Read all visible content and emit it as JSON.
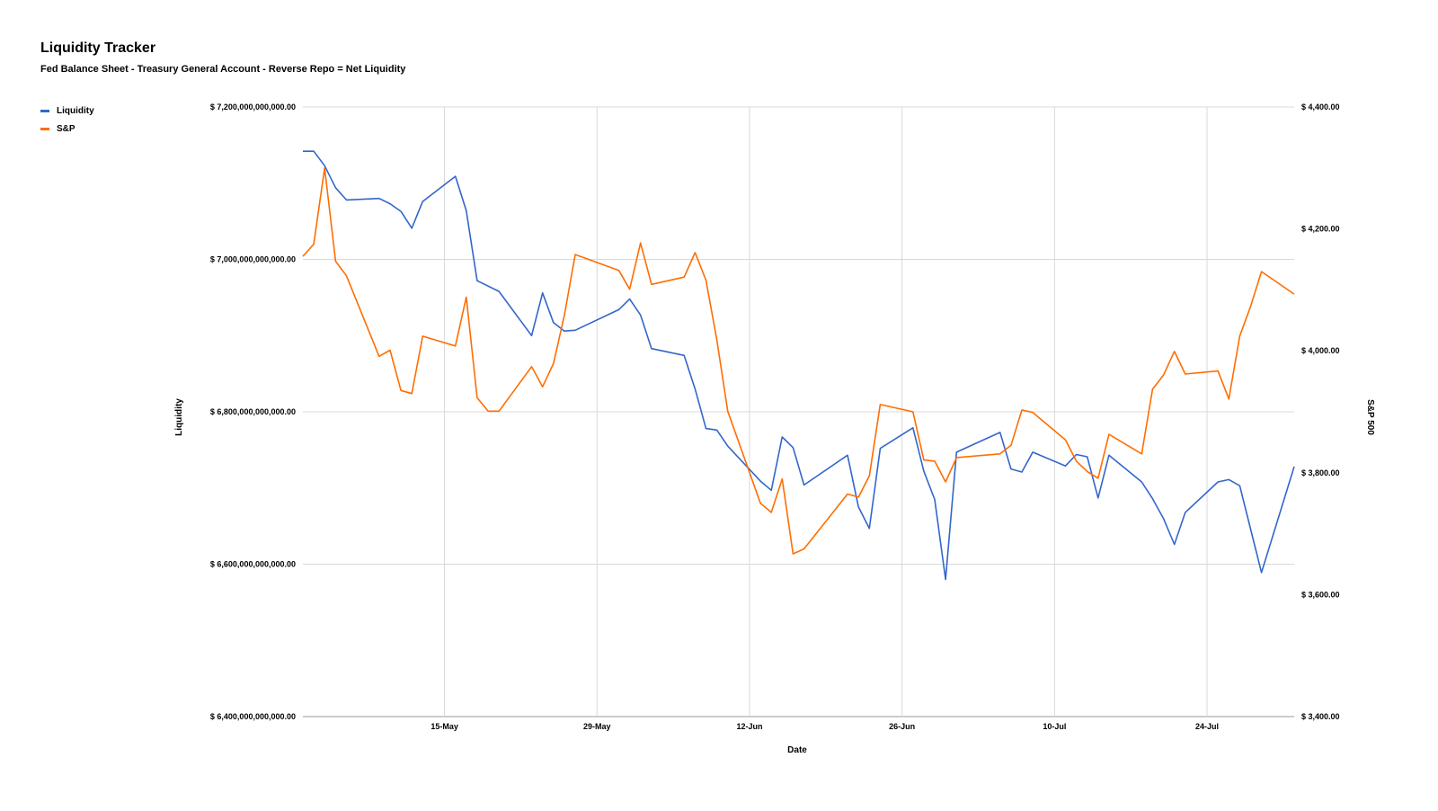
{
  "chart_data": {
    "type": "line",
    "title": "Liquidity Tracker",
    "subtitle": "Fed Balance Sheet - Treasury General Account - Reverse Repo = Net Liquidity",
    "xlabel": "Date",
    "ylabel_left": "Liquidity",
    "ylabel_right": "S&P 500",
    "x_start": "2022-05-02",
    "x_end": "2022-08-01",
    "x_ticks": [
      {
        "date": "2022-05-15",
        "label": "15-May"
      },
      {
        "date": "2022-05-29",
        "label": "29-May"
      },
      {
        "date": "2022-06-12",
        "label": "12-Jun"
      },
      {
        "date": "2022-06-26",
        "label": "26-Jun"
      },
      {
        "date": "2022-07-10",
        "label": "10-Jul"
      },
      {
        "date": "2022-07-24",
        "label": "24-Jul"
      }
    ],
    "ylim_left": [
      6400000000000,
      7200000000000
    ],
    "ylim_right": [
      3400,
      4400
    ],
    "y_ticks_left": [
      {
        "value": 7200000000000,
        "label": "$ 7,200,000,000,000.00"
      },
      {
        "value": 7000000000000,
        "label": "$ 7,000,000,000,000.00"
      },
      {
        "value": 6800000000000,
        "label": "$ 6,800,000,000,000.00"
      },
      {
        "value": 6600000000000,
        "label": "$ 6,600,000,000,000.00"
      },
      {
        "value": 6400000000000,
        "label": "$ 6,400,000,000,000.00"
      }
    ],
    "y_ticks_right": [
      {
        "value": 4400,
        "label": "$ 4,400.00"
      },
      {
        "value": 4200,
        "label": "$ 4,200.00"
      },
      {
        "value": 4000,
        "label": "$ 4,000.00"
      },
      {
        "value": 3800,
        "label": "$ 3,800.00"
      },
      {
        "value": 3600,
        "label": "$ 3,600.00"
      },
      {
        "value": 3400,
        "label": "$ 3,400.00"
      }
    ],
    "grid": true,
    "legend_position": "top-left",
    "series": [
      {
        "name": "Liquidity",
        "axis": "left",
        "color": "#3366cc",
        "points": [
          [
            "2022-05-02",
            7142
          ],
          [
            "2022-05-03",
            7142
          ],
          [
            "2022-05-04",
            7123
          ],
          [
            "2022-05-05",
            7094
          ],
          [
            "2022-05-06",
            7078
          ],
          [
            "2022-05-09",
            7080
          ],
          [
            "2022-05-10",
            7073
          ],
          [
            "2022-05-11",
            7063
          ],
          [
            "2022-05-12",
            7041
          ],
          [
            "2022-05-13",
            7076
          ],
          [
            "2022-05-16",
            7109
          ],
          [
            "2022-05-17",
            7064
          ],
          [
            "2022-05-18",
            6972
          ],
          [
            "2022-05-20",
            6958
          ],
          [
            "2022-05-23",
            6900
          ],
          [
            "2022-05-24",
            6956
          ],
          [
            "2022-05-25",
            6917
          ],
          [
            "2022-05-26",
            6906
          ],
          [
            "2022-05-27",
            6907
          ],
          [
            "2022-05-31",
            6934
          ],
          [
            "2022-06-01",
            6948
          ],
          [
            "2022-06-02",
            6927
          ],
          [
            "2022-06-03",
            6883
          ],
          [
            "2022-06-06",
            6874
          ],
          [
            "2022-06-07",
            6830
          ],
          [
            "2022-06-08",
            6778
          ],
          [
            "2022-06-09",
            6776
          ],
          [
            "2022-06-10",
            6755
          ],
          [
            "2022-06-13",
            6709
          ],
          [
            "2022-06-14",
            6697
          ],
          [
            "2022-06-15",
            6767
          ],
          [
            "2022-06-16",
            6753
          ],
          [
            "2022-06-17",
            6704
          ],
          [
            "2022-06-21",
            6743
          ],
          [
            "2022-06-22",
            6675
          ],
          [
            "2022-06-23",
            6647
          ],
          [
            "2022-06-24",
            6752
          ],
          [
            "2022-06-27",
            6779
          ],
          [
            "2022-06-28",
            6722
          ],
          [
            "2022-06-29",
            6685
          ],
          [
            "2022-06-30",
            6580
          ],
          [
            "2022-07-01",
            6747
          ],
          [
            "2022-07-05",
            6773
          ],
          [
            "2022-07-06",
            6725
          ],
          [
            "2022-07-07",
            6721
          ],
          [
            "2022-07-08",
            6747
          ],
          [
            "2022-07-11",
            6729
          ],
          [
            "2022-07-12",
            6744
          ],
          [
            "2022-07-13",
            6741
          ],
          [
            "2022-07-14",
            6687
          ],
          [
            "2022-07-15",
            6743
          ],
          [
            "2022-07-18",
            6708
          ],
          [
            "2022-07-19",
            6686
          ],
          [
            "2022-07-20",
            6660
          ],
          [
            "2022-07-21",
            6626
          ],
          [
            "2022-07-22",
            6668
          ],
          [
            "2022-07-25",
            6708
          ],
          [
            "2022-07-26",
            6711
          ],
          [
            "2022-07-27",
            6703
          ],
          [
            "2022-07-28",
            6646
          ],
          [
            "2022-07-29",
            6589
          ],
          [
            "2022-08-01",
            6728
          ]
        ]
      },
      {
        "name": "S&P",
        "axis": "right",
        "color": "#ff6d01",
        "points": [
          [
            "2022-05-02",
            4155
          ],
          [
            "2022-05-03",
            4175
          ],
          [
            "2022-05-04",
            4300
          ],
          [
            "2022-05-05",
            4147
          ],
          [
            "2022-05-06",
            4123
          ],
          [
            "2022-05-09",
            3991
          ],
          [
            "2022-05-10",
            4001
          ],
          [
            "2022-05-11",
            3935
          ],
          [
            "2022-05-12",
            3930
          ],
          [
            "2022-05-13",
            4024
          ],
          [
            "2022-05-16",
            4008
          ],
          [
            "2022-05-17",
            4088
          ],
          [
            "2022-05-18",
            3923
          ],
          [
            "2022-05-19",
            3901
          ],
          [
            "2022-05-20",
            3901
          ],
          [
            "2022-05-23",
            3974
          ],
          [
            "2022-05-24",
            3941
          ],
          [
            "2022-05-25",
            3979
          ],
          [
            "2022-05-26",
            4058
          ],
          [
            "2022-05-27",
            4158
          ],
          [
            "2022-05-31",
            4132
          ],
          [
            "2022-06-01",
            4101
          ],
          [
            "2022-06-02",
            4177
          ],
          [
            "2022-06-03",
            4109
          ],
          [
            "2022-06-06",
            4121
          ],
          [
            "2022-06-07",
            4161
          ],
          [
            "2022-06-08",
            4116
          ],
          [
            "2022-06-09",
            4018
          ],
          [
            "2022-06-10",
            3901
          ],
          [
            "2022-06-13",
            3750
          ],
          [
            "2022-06-14",
            3735
          ],
          [
            "2022-06-15",
            3790
          ],
          [
            "2022-06-16",
            3667
          ],
          [
            "2022-06-17",
            3675
          ],
          [
            "2022-06-21",
            3765
          ],
          [
            "2022-06-22",
            3760
          ],
          [
            "2022-06-23",
            3795
          ],
          [
            "2022-06-24",
            3912
          ],
          [
            "2022-06-27",
            3900
          ],
          [
            "2022-06-28",
            3821
          ],
          [
            "2022-06-29",
            3819
          ],
          [
            "2022-06-30",
            3785
          ],
          [
            "2022-07-01",
            3825
          ],
          [
            "2022-07-05",
            3831
          ],
          [
            "2022-07-06",
            3845
          ],
          [
            "2022-07-07",
            3903
          ],
          [
            "2022-07-08",
            3899
          ],
          [
            "2022-07-11",
            3854
          ],
          [
            "2022-07-12",
            3819
          ],
          [
            "2022-07-13",
            3802
          ],
          [
            "2022-07-14",
            3791
          ],
          [
            "2022-07-15",
            3863
          ],
          [
            "2022-07-18",
            3831
          ],
          [
            "2022-07-19",
            3937
          ],
          [
            "2022-07-20",
            3960
          ],
          [
            "2022-07-21",
            3999
          ],
          [
            "2022-07-22",
            3962
          ],
          [
            "2022-07-25",
            3967
          ],
          [
            "2022-07-26",
            3921
          ],
          [
            "2022-07-27",
            4024
          ],
          [
            "2022-07-28",
            4073
          ],
          [
            "2022-07-29",
            4130
          ],
          [
            "2022-08-01",
            4093
          ]
        ]
      }
    ]
  }
}
